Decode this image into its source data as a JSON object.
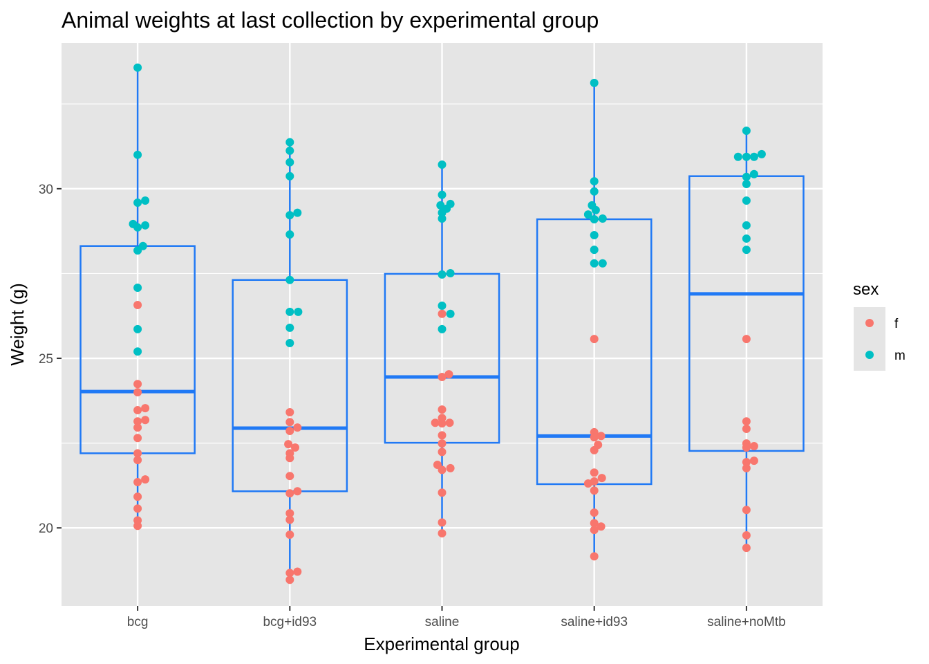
{
  "chart_data": {
    "type": "box+jitter",
    "title": "Animal weights at last collection by experimental group",
    "xlabel": "Experimental group",
    "ylabel": "Weight (g)",
    "ylim": [
      17.7,
      34.3
    ],
    "yticks": [
      20,
      25,
      30
    ],
    "ytick_labels": [
      "20",
      "25",
      "30"
    ],
    "y_minor_gridlines": [
      17.5,
      22.5,
      27.5,
      32.5
    ],
    "grid": true,
    "categories": [
      "bcg",
      "bcg+id93",
      "saline",
      "saline+id93",
      "saline+noMtb"
    ],
    "box_color": "#2079F5",
    "panel_background": "#E5E5E5",
    "legend": {
      "title": "sex",
      "placement": "right",
      "entries": [
        {
          "label": "f",
          "color": "#F8766D"
        },
        {
          "label": "m",
          "color": "#00BFC4"
        }
      ]
    },
    "boxes": [
      {
        "group": "bcg",
        "whisker_low": 20.06,
        "q1": 22.2,
        "median": 24.02,
        "q3": 28.31,
        "whisker_high": 33.57
      },
      {
        "group": "bcg+id93",
        "whisker_low": 18.47,
        "q1": 21.08,
        "median": 22.94,
        "q3": 27.31,
        "whisker_high": 31.37
      },
      {
        "group": "saline",
        "whisker_low": 19.84,
        "q1": 22.51,
        "median": 24.45,
        "q3": 27.49,
        "whisker_high": 30.71
      },
      {
        "group": "saline+id93",
        "whisker_low": 19.16,
        "q1": 21.29,
        "median": 22.71,
        "q3": 29.1,
        "whisker_high": 33.14
      },
      {
        "group": "saline+noMtb",
        "whisker_low": 19.43,
        "q1": 22.27,
        "median": 26.9,
        "q3": 30.37,
        "whisker_high": 31.71
      }
    ],
    "points": [
      {
        "group": "bcg",
        "sex": "m",
        "values": [
          33.57,
          31.0,
          29.59,
          29.65,
          28.96,
          28.86,
          28.92,
          28.31,
          28.18,
          27.08,
          25.86,
          25.2
        ],
        "jitter": [
          0,
          0,
          0,
          0.05,
          -0.03,
          0,
          0.05,
          0.035,
          0,
          0,
          0,
          0
        ]
      },
      {
        "group": "bcg",
        "sex": "f",
        "values": [
          26.57,
          24.24,
          24.0,
          23.47,
          23.53,
          23.14,
          23.18,
          22.96,
          22.65,
          22.2,
          22.0,
          21.35,
          21.43,
          20.92,
          20.57,
          20.22,
          20.06
        ],
        "jitter": [
          0,
          0,
          0,
          0,
          0.05,
          0,
          0.05,
          0,
          0,
          0,
          0,
          0,
          0.05,
          0,
          0,
          0,
          0
        ]
      },
      {
        "group": "bcg+id93",
        "sex": "m",
        "values": [
          31.37,
          31.12,
          30.78,
          30.37,
          29.22,
          29.29,
          28.65,
          27.31,
          26.37,
          26.37,
          25.9,
          25.45
        ],
        "jitter": [
          0,
          0,
          0,
          0,
          0,
          0.05,
          0,
          0,
          0,
          0.055,
          0,
          0
        ]
      },
      {
        "group": "bcg+id93",
        "sex": "f",
        "values": [
          23.41,
          23.12,
          22.96,
          22.86,
          22.47,
          22.37,
          22.2,
          22.06,
          21.53,
          21.02,
          21.08,
          20.43,
          20.24,
          19.8,
          18.67,
          18.71,
          18.47
        ],
        "jitter": [
          0,
          0,
          0.05,
          0,
          -0.01,
          0.035,
          0,
          0,
          0,
          0,
          0.05,
          0,
          0,
          0,
          0,
          0.05,
          0
        ]
      },
      {
        "group": "saline",
        "sex": "m",
        "values": [
          30.71,
          29.82,
          29.51,
          29.55,
          29.41,
          29.29,
          29.12,
          27.47,
          27.51,
          26.55,
          26.31,
          25.86
        ],
        "jitter": [
          0,
          0,
          -0.01,
          0.055,
          0.03,
          0,
          0,
          0,
          0.055,
          0,
          0.055,
          0
        ]
      },
      {
        "group": "saline",
        "sex": "f",
        "values": [
          26.31,
          24.53,
          24.45,
          23.49,
          23.24,
          23.1,
          23.1,
          23.08,
          22.73,
          22.49,
          22.24,
          21.86,
          21.71,
          21.76,
          21.04,
          20.16,
          19.84
        ],
        "jitter": [
          0,
          0.045,
          0,
          0,
          0,
          -0.045,
          0.05,
          0,
          0,
          0,
          0,
          -0.03,
          0,
          0.055,
          0,
          0,
          0
        ]
      },
      {
        "group": "saline+id93",
        "sex": "m",
        "values": [
          33.12,
          30.22,
          29.92,
          29.51,
          29.37,
          29.24,
          29.1,
          29.12,
          28.63,
          28.2,
          27.8,
          27.8
        ],
        "jitter": [
          0,
          0,
          0,
          -0.015,
          0.01,
          -0.04,
          0,
          0.055,
          0,
          0,
          0,
          0.055
        ]
      },
      {
        "group": "saline+id93",
        "sex": "f",
        "values": [
          25.57,
          22.82,
          22.71,
          22.67,
          22.45,
          22.29,
          21.63,
          21.47,
          21.31,
          21.37,
          21.1,
          20.45,
          20.14,
          20.04,
          19.94,
          19.16
        ],
        "jitter": [
          0,
          0,
          0.045,
          0,
          0.025,
          0,
          0,
          0.05,
          -0.04,
          0,
          0,
          0,
          0,
          0.045,
          0,
          0
        ]
      },
      {
        "group": "saline+noMtb",
        "sex": "m",
        "values": [
          31.71,
          30.94,
          30.94,
          30.94,
          31.02,
          30.43,
          30.35,
          30.14,
          29.65,
          28.92,
          28.53,
          28.2
        ],
        "jitter": [
          0,
          -0.055,
          0,
          0.05,
          0.1,
          0.05,
          0,
          0,
          0,
          0,
          0,
          0
        ]
      },
      {
        "group": "saline+noMtb",
        "sex": "f",
        "values": [
          25.57,
          23.14,
          22.92,
          22.49,
          22.41,
          22.37,
          21.98,
          21.94,
          21.76,
          20.53,
          19.78,
          19.41
        ],
        "jitter": [
          0,
          0,
          0,
          0,
          0.05,
          0,
          0.05,
          0,
          0,
          0,
          0,
          0
        ]
      }
    ]
  }
}
